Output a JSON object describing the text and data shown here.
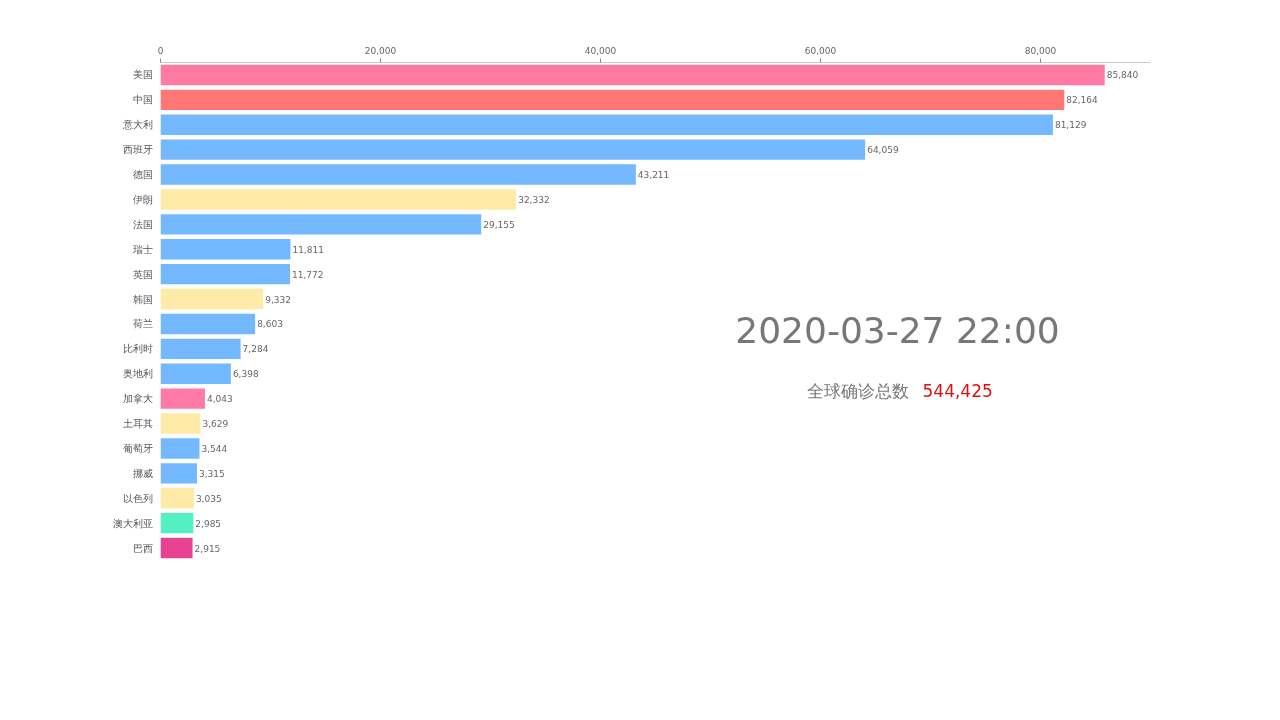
{
  "chart_data": {
    "type": "bar",
    "orientation": "horizontal",
    "categories": [
      "美国",
      "中国",
      "意大利",
      "西班牙",
      "德国",
      "伊朗",
      "法国",
      "瑞士",
      "英国",
      "韩国",
      "荷兰",
      "比利时",
      "奥地利",
      "加拿大",
      "土耳其",
      "葡萄牙",
      "挪威",
      "以色列",
      "澳大利亚",
      "巴西"
    ],
    "values": [
      85840,
      82164,
      81129,
      64059,
      43211,
      32332,
      29155,
      11811,
      11772,
      9332,
      8603,
      7284,
      6398,
      4043,
      3629,
      3544,
      3315,
      3035,
      2985,
      2915
    ],
    "colors": [
      "#ff7ba6",
      "#ff7675",
      "#74b9ff",
      "#74b9ff",
      "#74b9ff",
      "#ffeaa7",
      "#74b9ff",
      "#74b9ff",
      "#74b9ff",
      "#ffeaa7",
      "#74b9ff",
      "#74b9ff",
      "#74b9ff",
      "#ff7ba6",
      "#ffeaa7",
      "#74b9ff",
      "#74b9ff",
      "#ffeaa7",
      "#55efc4",
      "#e84393"
    ],
    "xlim": [
      0,
      90000
    ],
    "xticks": [
      0,
      {
        "value": 20000,
        "label": "20,000"
      },
      {
        "value": 40000,
        "label": "40,000"
      },
      {
        "value": 60000,
        "label": "60,000"
      },
      {
        "value": 80000,
        "label": "80,000"
      }
    ],
    "value_labels": [
      "85,840",
      "82,164",
      "81,129",
      "64,059",
      "43,211",
      "32,332",
      "29,155",
      "11,811",
      "11,772",
      "9,332",
      "8,603",
      "7,284",
      "6,398",
      "4,043",
      "3,629",
      "3,544",
      "3,315",
      "3,035",
      "2,985",
      "2,915"
    ],
    "grid": false,
    "annotations": [
      "2020-03-27 22:00",
      "全球确诊总数",
      "544,425"
    ]
  }
}
